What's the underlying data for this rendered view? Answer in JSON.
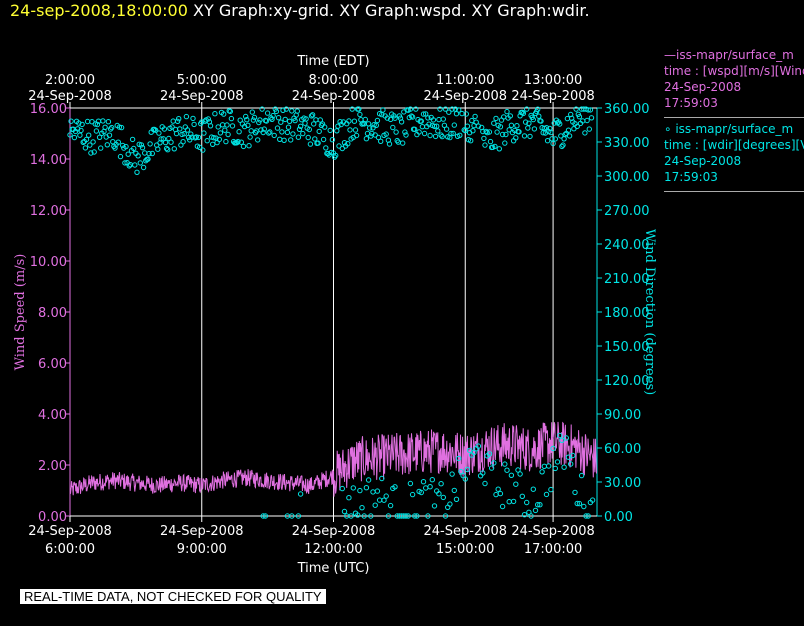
{
  "header": {
    "timestamp": "24-sep-2008,18:00:00",
    "title_rest": " XY Graph:xy-grid.  XY Graph:wspd.  XY Graph:wdir."
  },
  "colors": {
    "wspd": "#e070e0",
    "wdir": "#00e5e5",
    "grid": "#ffffff",
    "timestamp": "#ffff33"
  },
  "legend": {
    "wspd": {
      "line1": "—iss-mapr/surface_m",
      "line2": "time : [wspd][m/s][Wind",
      "line3": "24-Sep-2008",
      "line4": "17:59:03"
    },
    "wdir": {
      "line1": "∘ iss-mapr/surface_m",
      "line2": "time : [wdir][degrees][V",
      "line3": "24-Sep-2008",
      "line4": "17:59:03"
    }
  },
  "banner": "REAL-TIME DATA, NOT CHECKED FOR QUALITY",
  "chart_data": {
    "type": "line",
    "title": "",
    "x_range_utc_hours": [
      6.0,
      18.0
    ],
    "xlabel_bottom": "Time (UTC)",
    "xlabel_top": "Time (EDT)",
    "ylabel_left": "Wind Speed (m/s)",
    "ylabel_right": "Wind Direction (degrees)",
    "ylim_left": [
      0,
      16
    ],
    "ylim_right": [
      0,
      360
    ],
    "yticks_left": [
      "0.00",
      "2.00",
      "4.00",
      "6.00",
      "8.00",
      "10.00",
      "12.00",
      "14.00",
      "16.00"
    ],
    "yticks_right": [
      "0.00",
      "30.00",
      "60.00",
      "90.00",
      "120.00",
      "150.00",
      "180.00",
      "210.00",
      "240.00",
      "270.00",
      "300.00",
      "330.00",
      "360.00"
    ],
    "xticks_bottom": [
      {
        "h": 6,
        "date": "24-Sep-2008",
        "time": "6:00:00"
      },
      {
        "h": 9,
        "date": "24-Sep-2008",
        "time": "9:00:00"
      },
      {
        "h": 12,
        "date": "24-Sep-2008",
        "time": "12:00:00"
      },
      {
        "h": 15,
        "date": "24-Sep-2008",
        "time": "15:00:00"
      },
      {
        "h": 17,
        "date": "24-Sep-2008",
        "time": "17:00:00"
      }
    ],
    "xticks_top": [
      {
        "h": 6,
        "time": "2:00:00",
        "date": "24-Sep-2008"
      },
      {
        "h": 9,
        "time": "5:00:00",
        "date": "24-Sep-2008"
      },
      {
        "h": 12,
        "time": "8:00:00",
        "date": "24-Sep-2008"
      },
      {
        "h": 15,
        "time": "11:00:00",
        "date": "24-Sep-2008"
      },
      {
        "h": 17,
        "time": "13:00:00",
        "date": "24-Sep-2008"
      }
    ],
    "grid_verticals_utc_hours": [
      9,
      12,
      15,
      17
    ],
    "series": [
      {
        "name": "iss-mapr/surface_m wspd",
        "axis": "left",
        "style": "line",
        "x": [
          6.0,
          6.5,
          7.0,
          7.5,
          8.0,
          8.5,
          9.0,
          9.5,
          10.0,
          10.5,
          11.0,
          11.5,
          12.0,
          12.5,
          13.0,
          13.5,
          14.0,
          14.5,
          15.0,
          15.5,
          16.0,
          16.5,
          17.0,
          17.5,
          17.99
        ],
        "y": [
          1.0,
          1.3,
          1.4,
          1.3,
          1.2,
          1.3,
          1.2,
          1.4,
          1.5,
          1.4,
          1.3,
          1.2,
          1.6,
          2.2,
          2.3,
          2.4,
          2.5,
          2.6,
          2.4,
          2.7,
          2.8,
          2.6,
          2.9,
          2.7,
          2.2
        ]
      },
      {
        "name": "iss-mapr/surface_m wdir",
        "axis": "right",
        "style": "scatter",
        "x": [
          6.0,
          6.5,
          7.0,
          7.5,
          8.0,
          8.5,
          9.0,
          9.5,
          10.0,
          10.5,
          11.0,
          11.5,
          12.0,
          12.5,
          13.0,
          13.5,
          14.0,
          14.5,
          15.0,
          15.5,
          16.0,
          16.5,
          17.0,
          17.5,
          17.9
        ],
        "y": [
          340,
          335,
          338,
          315,
          330,
          340,
          335,
          345,
          340,
          350,
          345,
          342,
          330,
          350,
          345,
          340,
          350,
          345,
          350,
          330,
          345,
          348,
          335,
          350,
          355
        ],
        "low_cluster_x": [
          10.2,
          12.5,
          13.0,
          13.5,
          14.0,
          14.5,
          15.0,
          15.3,
          15.7,
          16.0,
          16.5,
          17.0,
          17.3,
          17.6,
          17.9
        ],
        "low_cluster_y": [
          0,
          10,
          20,
          5,
          15,
          10,
          40,
          55,
          25,
          30,
          10,
          45,
          60,
          20,
          5
        ]
      }
    ]
  }
}
